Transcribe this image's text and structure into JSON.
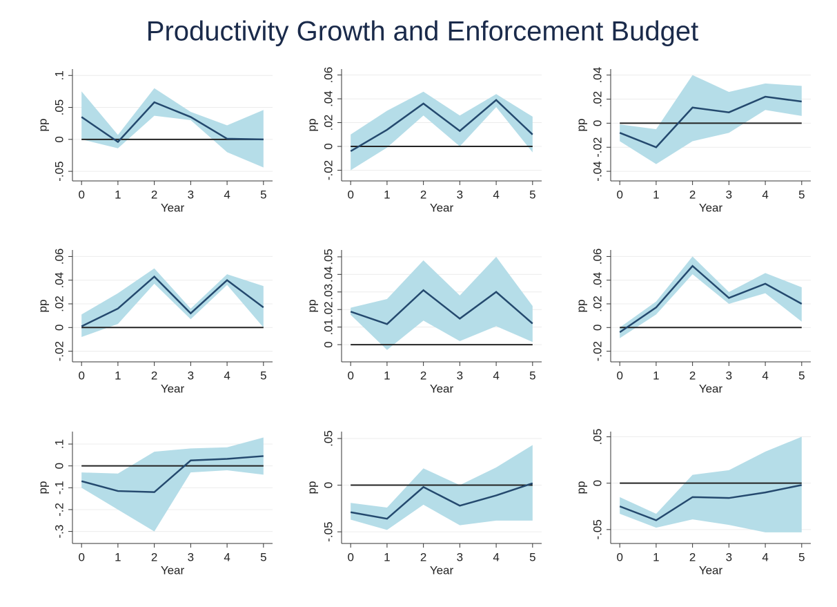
{
  "title": "Productivity Growth and Enforcement Budget",
  "chart_data": [
    {
      "type": "line",
      "x": [
        0,
        1,
        2,
        3,
        4,
        5
      ],
      "xlabel": "Year",
      "ylabel": "pp",
      "values": [
        0.035,
        -0.004,
        0.058,
        0.035,
        0.001,
        0.0
      ],
      "upper": [
        0.075,
        0.007,
        0.08,
        0.043,
        0.022,
        0.046
      ],
      "lower": [
        0.0,
        -0.014,
        0.037,
        0.03,
        -0.02,
        -0.044
      ],
      "color": "#24496e",
      "band_color": "#b5dde8",
      "hline": 0,
      "hline_color": "#222222",
      "xlim": [
        -0.25,
        5.25
      ],
      "xticks": [
        0,
        1,
        2,
        3,
        4,
        5
      ],
      "ylim": [
        -0.065,
        0.11
      ],
      "yticks": [
        {
          "value": -0.05,
          "label": "-.05"
        },
        0,
        {
          "value": 0.05,
          "label": ".05"
        },
        {
          "value": 0.1,
          "label": ".1"
        }
      ],
      "grid": true
    },
    {
      "type": "line",
      "x": [
        0,
        1,
        2,
        3,
        4,
        5
      ],
      "xlabel": "Year",
      "ylabel": "pp",
      "values": [
        -0.004,
        0.014,
        0.036,
        0.013,
        0.039,
        0.01
      ],
      "upper": [
        0.01,
        0.03,
        0.046,
        0.026,
        0.044,
        0.025
      ],
      "lower": [
        -0.02,
        -0.001,
        0.026,
        0.0,
        0.033,
        -0.005
      ],
      "color": "#24496e",
      "band_color": "#b5dde8",
      "hline": 0,
      "hline_color": "#222222",
      "xlim": [
        -0.25,
        5.25
      ],
      "xticks": [
        0,
        1,
        2,
        3,
        4,
        5
      ],
      "ylim": [
        -0.029,
        0.065
      ],
      "yticks": [
        {
          "value": -0.02,
          "label": "-.02"
        },
        0,
        {
          "value": 0.02,
          "label": ".02"
        },
        {
          "value": 0.04,
          "label": ".04"
        },
        {
          "value": 0.06,
          "label": ".06"
        }
      ],
      "grid": true
    },
    {
      "type": "line",
      "x": [
        0,
        1,
        2,
        3,
        4,
        5
      ],
      "xlabel": "Year",
      "ylabel": "pp",
      "values": [
        -0.008,
        -0.02,
        0.013,
        0.009,
        0.022,
        0.018
      ],
      "upper": [
        -0.001,
        -0.005,
        0.04,
        0.026,
        0.033,
        0.031
      ],
      "lower": [
        -0.015,
        -0.034,
        -0.015,
        -0.008,
        0.011,
        0.006
      ],
      "color": "#24496e",
      "band_color": "#b5dde8",
      "hline": 0,
      "hline_color": "#222222",
      "xlim": [
        -0.25,
        5.25
      ],
      "xticks": [
        0,
        1,
        2,
        3,
        4,
        5
      ],
      "ylim": [
        -0.048,
        0.045
      ],
      "yticks": [
        {
          "value": -0.04,
          "label": "-.04"
        },
        {
          "value": -0.02,
          "label": "-.02"
        },
        0,
        {
          "value": 0.02,
          "label": ".02"
        },
        {
          "value": 0.04,
          "label": ".04"
        }
      ],
      "grid": true
    },
    {
      "type": "line",
      "x": [
        0,
        1,
        2,
        3,
        4,
        5
      ],
      "xlabel": "Year",
      "ylabel": "pp",
      "values": [
        0.001,
        0.016,
        0.043,
        0.012,
        0.04,
        0.017
      ],
      "upper": [
        0.011,
        0.029,
        0.05,
        0.016,
        0.045,
        0.035
      ],
      "lower": [
        -0.008,
        0.003,
        0.037,
        0.007,
        0.036,
        0.0
      ],
      "color": "#24496e",
      "band_color": "#b5dde8",
      "hline": 0,
      "hline_color": "#222222",
      "xlim": [
        -0.25,
        5.25
      ],
      "xticks": [
        0,
        1,
        2,
        3,
        4,
        5
      ],
      "ylim": [
        -0.029,
        0.0655
      ],
      "yticks": [
        {
          "value": -0.02,
          "label": "-.02"
        },
        0,
        {
          "value": 0.02,
          "label": ".02"
        },
        {
          "value": 0.04,
          "label": ".04"
        },
        {
          "value": 0.06,
          "label": ".06"
        }
      ],
      "grid": true
    },
    {
      "type": "line",
      "x": [
        0,
        1,
        2,
        3,
        4,
        5
      ],
      "xlabel": "Year",
      "ylabel": "pp",
      "values": [
        0.0188,
        0.0117,
        0.031,
        0.0148,
        0.03,
        0.012
      ],
      "upper": [
        0.021,
        0.026,
        0.048,
        0.028,
        0.05,
        0.022
      ],
      "lower": [
        0.017,
        -0.003,
        0.0137,
        0.002,
        0.0105,
        0.0015
      ],
      "color": "#24496e",
      "band_color": "#b5dde8",
      "hline": 0,
      "hline_color": "#222222",
      "xlim": [
        -0.25,
        5.25
      ],
      "xticks": [
        0,
        1,
        2,
        3,
        4,
        5
      ],
      "ylim": [
        -0.0098,
        0.0539
      ],
      "yticks": [
        0,
        {
          "value": 0.01,
          "label": ".01"
        },
        {
          "value": 0.02,
          "label": ".02"
        },
        {
          "value": 0.03,
          "label": ".03"
        },
        {
          "value": 0.04,
          "label": ".04"
        },
        {
          "value": 0.05,
          "label": ".05"
        }
      ],
      "grid": true
    },
    {
      "type": "line",
      "x": [
        0,
        1,
        2,
        3,
        4,
        5
      ],
      "xlabel": "Year",
      "ylabel": "pp",
      "values": [
        -0.004,
        0.017,
        0.052,
        0.025,
        0.037,
        0.02
      ],
      "upper": [
        0.0,
        0.022,
        0.06,
        0.03,
        0.046,
        0.034
      ],
      "lower": [
        -0.009,
        0.011,
        0.045,
        0.02,
        0.029,
        0.005
      ],
      "color": "#24496e",
      "band_color": "#b5dde8",
      "hline": 0,
      "hline_color": "#222222",
      "xlim": [
        -0.25,
        5.25
      ],
      "xticks": [
        0,
        1,
        2,
        3,
        4,
        5
      ],
      "ylim": [
        -0.029,
        0.0655
      ],
      "yticks": [
        {
          "value": -0.02,
          "label": "-.02"
        },
        0,
        {
          "value": 0.02,
          "label": ".02"
        },
        {
          "value": 0.04,
          "label": ".04"
        },
        {
          "value": 0.06,
          "label": ".06"
        }
      ],
      "grid": true
    },
    {
      "type": "line",
      "x": [
        0,
        1,
        2,
        3,
        4,
        5
      ],
      "xlabel": "Year",
      "ylabel": "pp",
      "values": [
        -0.07,
        -0.115,
        -0.12,
        0.025,
        0.032,
        0.045
      ],
      "upper": [
        -0.03,
        -0.035,
        0.065,
        0.08,
        0.085,
        0.13
      ],
      "lower": [
        -0.1,
        -0.2,
        -0.3,
        -0.03,
        -0.02,
        -0.04
      ],
      "color": "#24496e",
      "band_color": "#b5dde8",
      "hline": 0,
      "hline_color": "#222222",
      "xlim": [
        -0.25,
        5.25
      ],
      "xticks": [
        0,
        1,
        2,
        3,
        4,
        5
      ],
      "ylim": [
        -0.355,
        0.157
      ],
      "yticks": [
        {
          "value": -0.3,
          "label": "-.3"
        },
        {
          "value": -0.2,
          "label": "-.2"
        },
        {
          "value": -0.1,
          "label": "-.1"
        },
        0,
        {
          "value": 0.1,
          "label": ".1"
        }
      ],
      "grid": true
    },
    {
      "type": "line",
      "x": [
        0,
        1,
        2,
        3,
        4,
        5
      ],
      "xlabel": "Year",
      "ylabel": "pp",
      "values": [
        -0.029,
        -0.036,
        -0.002,
        -0.022,
        -0.011,
        0.002
      ],
      "upper": [
        -0.019,
        -0.024,
        0.018,
        0.0,
        0.019,
        0.043
      ],
      "lower": [
        -0.037,
        -0.048,
        -0.021,
        -0.043,
        -0.038,
        -0.038
      ],
      "color": "#24496e",
      "band_color": "#b5dde8",
      "hline": 0,
      "hline_color": "#222222",
      "xlim": [
        -0.25,
        5.25
      ],
      "xticks": [
        0,
        1,
        2,
        3,
        4,
        5
      ],
      "ylim": [
        -0.0625,
        0.0574
      ],
      "yticks": [
        {
          "value": -0.05,
          "label": "-.05"
        },
        0,
        {
          "value": 0.05,
          "label": ".05"
        }
      ],
      "grid": true
    },
    {
      "type": "line",
      "x": [
        0,
        1,
        2,
        3,
        4,
        5
      ],
      "xlabel": "Year",
      "ylabel": "pp",
      "values": [
        -0.025,
        -0.04,
        -0.015,
        -0.016,
        -0.01,
        -0.002
      ],
      "upper": [
        -0.015,
        -0.033,
        0.009,
        0.014,
        0.034,
        0.05
      ],
      "lower": [
        -0.033,
        -0.048,
        -0.039,
        -0.045,
        -0.053,
        -0.053
      ],
      "color": "#24496e",
      "band_color": "#b5dde8",
      "hline": 0,
      "hline_color": "#222222",
      "xlim": [
        -0.25,
        5.25
      ],
      "xticks": [
        0,
        1,
        2,
        3,
        4,
        5
      ],
      "ylim": [
        -0.065,
        0.0556
      ],
      "yticks": [
        {
          "value": -0.05,
          "label": "-.05"
        },
        0,
        {
          "value": 0.05,
          "label": ".05"
        }
      ],
      "grid": true
    }
  ]
}
